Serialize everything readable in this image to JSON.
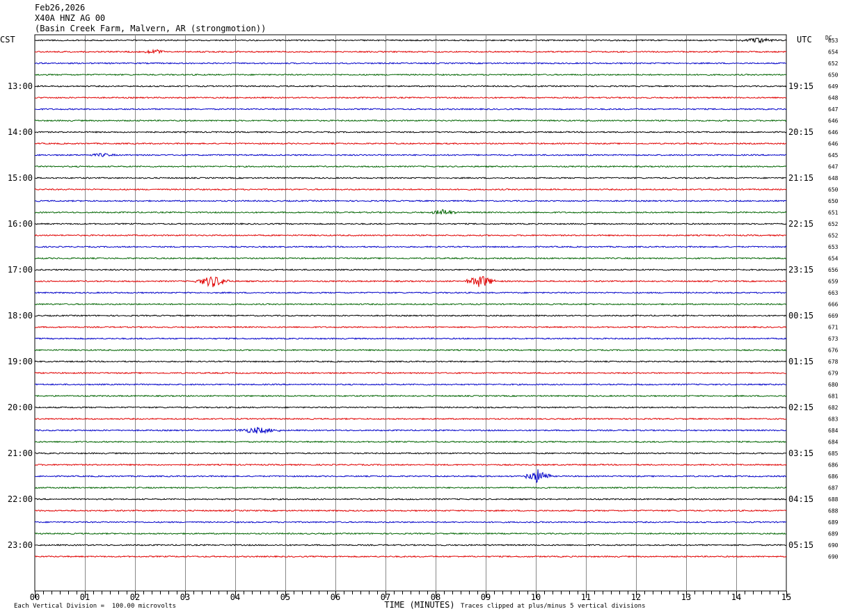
{
  "header": {
    "date": "Feb26,2026",
    "station": "X40A HNZ AG 00",
    "site": "(Basin Creek Farm, Malvern, AR (strongmotion))"
  },
  "footer": {
    "scale_note": "Each Vertical Division =  100.00 microvolts",
    "clip_note": "Traces clipped at plus/minus 5 vertical divisions"
  },
  "colors": {
    "trace_cycle": [
      "#000000",
      "#e00000",
      "#0000c8",
      "#006400"
    ],
    "grid": "#888888"
  },
  "chart_data": {
    "type": "line",
    "chart_kind": "helicorder",
    "xlabel": "TIME (MINUTES)",
    "xlim": [
      0,
      15
    ],
    "x_ticks": [
      "00",
      "01",
      "02",
      "03",
      "04",
      "05",
      "06",
      "07",
      "08",
      "09",
      "10",
      "11",
      "12",
      "13",
      "14",
      "15"
    ],
    "left_axis_title": "CST",
    "right_axis_title": "UTC",
    "dc_label": "DC",
    "left_hour_labels": [
      "13:00",
      "14:00",
      "15:00",
      "16:00",
      "17:00",
      "18:00",
      "19:00",
      "20:00",
      "21:00",
      "22:00",
      "23:00"
    ],
    "right_hour_labels": [
      "19:15",
      "20:15",
      "21:15",
      "22:15",
      "23:15",
      "00:15",
      "01:15",
      "02:15",
      "03:15",
      "04:15",
      "05:15"
    ],
    "dc_values": [
      "653",
      "654",
      "652",
      "650",
      "649",
      "648",
      "647",
      "646",
      "646",
      "646",
      "645",
      "647",
      "648",
      "650",
      "650",
      "651",
      "652",
      "652",
      "653",
      "654",
      "656",
      "659",
      "663",
      "666",
      "669",
      "671",
      "673",
      "676",
      "678",
      "679",
      "680",
      "681",
      "682",
      "683",
      "684",
      "684",
      "685",
      "686",
      "686",
      "687",
      "688",
      "688",
      "689",
      "689",
      "690",
      "690"
    ],
    "events": [
      {
        "trace": 0,
        "start_min": 14.1,
        "end_min": 14.8,
        "amplitude": 3
      },
      {
        "trace": 1,
        "start_min": 2.2,
        "end_min": 2.6,
        "amplitude": 3
      },
      {
        "trace": 10,
        "start_min": 1.1,
        "end_min": 1.6,
        "amplitude": 2
      },
      {
        "trace": 15,
        "start_min": 7.9,
        "end_min": 8.4,
        "amplitude": 4
      },
      {
        "trace": 21,
        "start_min": 3.2,
        "end_min": 3.9,
        "amplitude": 8
      },
      {
        "trace": 21,
        "start_min": 8.6,
        "end_min": 9.2,
        "amplitude": 9
      },
      {
        "trace": 34,
        "start_min": 4.0,
        "end_min": 4.9,
        "amplitude": 4
      },
      {
        "trace": 38,
        "start_min": 9.8,
        "end_min": 10.3,
        "amplitude": 10
      }
    ]
  }
}
